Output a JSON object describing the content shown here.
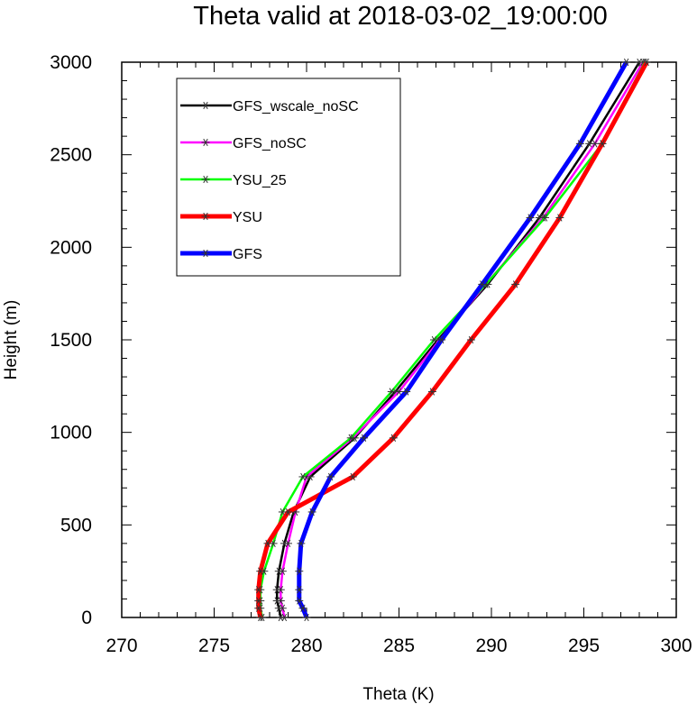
{
  "chart_data": {
    "type": "line",
    "title": "Theta valid at 2018-03-02_19:00:00",
    "xlabel": "Theta (K)",
    "ylabel": "Height (m)",
    "xlim": [
      270,
      300
    ],
    "ylim": [
      0,
      3000
    ],
    "xticks": [
      "270",
      "275",
      "280",
      "285",
      "290",
      "295",
      "300"
    ],
    "yticks": [
      "0",
      "500",
      "1000",
      "1500",
      "2000",
      "2500",
      "3000"
    ],
    "grid": false,
    "legend_position": "top-left",
    "marker": "asterisk",
    "series": [
      {
        "name": "GFS_wscale_noSC",
        "color": "#000000",
        "width": 2.5,
        "points": [
          [
            278.6,
            0
          ],
          [
            278.5,
            50
          ],
          [
            278.4,
            90
          ],
          [
            278.4,
            150
          ],
          [
            278.5,
            250
          ],
          [
            278.8,
            400
          ],
          [
            279.3,
            570
          ],
          [
            280.2,
            760
          ],
          [
            282.6,
            970
          ],
          [
            284.8,
            1220
          ],
          [
            287.1,
            1500
          ],
          [
            289.8,
            1800
          ],
          [
            292.6,
            2160
          ],
          [
            295.3,
            2560
          ],
          [
            298.0,
            3000
          ]
        ]
      },
      {
        "name": "GFS_noSC",
        "color": "#ff00ff",
        "width": 2.5,
        "points": [
          [
            278.8,
            0
          ],
          [
            278.7,
            50
          ],
          [
            278.6,
            90
          ],
          [
            278.6,
            150
          ],
          [
            278.7,
            250
          ],
          [
            279.0,
            400
          ],
          [
            279.4,
            570
          ],
          [
            280.0,
            760
          ],
          [
            282.5,
            970
          ],
          [
            285.0,
            1220
          ],
          [
            287.2,
            1500
          ],
          [
            289.7,
            1800
          ],
          [
            292.8,
            2160
          ],
          [
            295.6,
            2560
          ],
          [
            298.2,
            3000
          ]
        ]
      },
      {
        "name": "YSU_25",
        "color": "#00ff00",
        "width": 2.5,
        "points": [
          [
            277.6,
            0
          ],
          [
            277.5,
            50
          ],
          [
            277.5,
            90
          ],
          [
            277.5,
            150
          ],
          [
            277.7,
            250
          ],
          [
            278.2,
            400
          ],
          [
            278.7,
            570
          ],
          [
            279.8,
            760
          ],
          [
            282.4,
            970
          ],
          [
            284.6,
            1220
          ],
          [
            286.9,
            1500
          ],
          [
            289.7,
            1800
          ],
          [
            292.9,
            2160
          ],
          [
            296.0,
            2560
          ],
          [
            298.3,
            3000
          ]
        ]
      },
      {
        "name": "YSU",
        "color": "#ff0000",
        "width": 5,
        "points": [
          [
            277.5,
            0
          ],
          [
            277.4,
            50
          ],
          [
            277.4,
            90
          ],
          [
            277.4,
            150
          ],
          [
            277.5,
            250
          ],
          [
            277.9,
            400
          ],
          [
            279.0,
            570
          ],
          [
            282.5,
            760
          ],
          [
            284.7,
            970
          ],
          [
            286.8,
            1220
          ],
          [
            288.9,
            1500
          ],
          [
            291.3,
            1800
          ],
          [
            293.7,
            2160
          ],
          [
            296.0,
            2560
          ],
          [
            298.4,
            3000
          ]
        ]
      },
      {
        "name": "GFS",
        "color": "#0000ff",
        "width": 5,
        "points": [
          [
            280.0,
            0
          ],
          [
            279.8,
            50
          ],
          [
            279.6,
            90
          ],
          [
            279.6,
            150
          ],
          [
            279.6,
            250
          ],
          [
            279.7,
            400
          ],
          [
            280.3,
            570
          ],
          [
            281.3,
            760
          ],
          [
            283.1,
            970
          ],
          [
            285.4,
            1220
          ],
          [
            287.3,
            1500
          ],
          [
            289.5,
            1800
          ],
          [
            292.1,
            2160
          ],
          [
            294.8,
            2560
          ],
          [
            297.3,
            3000
          ]
        ]
      }
    ]
  }
}
